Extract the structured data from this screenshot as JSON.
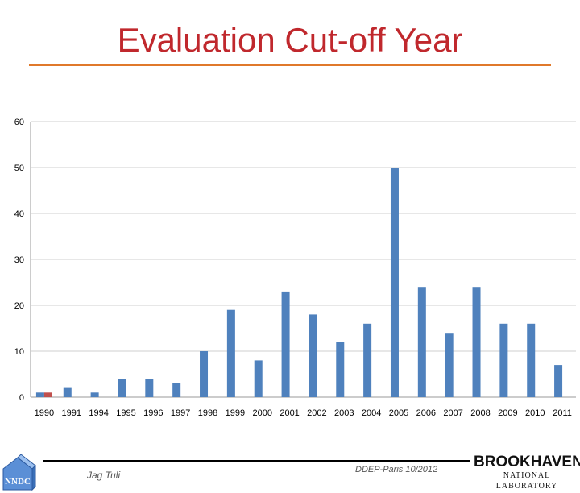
{
  "slide": {
    "title": "Evaluation Cut-off Year",
    "footer_author": "Jag Tuli",
    "footer_event": "DDEP-Paris 10/2012",
    "logo_left_text": "NNDC",
    "logo_right_line1": "BROOKHAVEN",
    "logo_right_line2": "NATIONAL LABORATORY"
  },
  "colors": {
    "title": "#c0282d",
    "bar_blue": "#4f81bd",
    "bar_red": "#c0504d",
    "rule": "#e0792b"
  },
  "chart_data": {
    "type": "bar",
    "categories": [
      "1990",
      "1991",
      "1994",
      "1995",
      "1996",
      "1997",
      "1998",
      "1999",
      "2000",
      "2001",
      "2002",
      "2003",
      "2004",
      "2005",
      "2006",
      "2007",
      "2008",
      "2009",
      "2010",
      "2011"
    ],
    "series": [
      {
        "values": [
          1,
          2,
          1,
          4,
          4,
          3,
          10,
          19,
          8,
          23,
          18,
          12,
          16,
          50,
          24,
          14,
          24,
          16,
          16,
          7
        ]
      },
      {
        "values": [
          1,
          0,
          0,
          0,
          0,
          0,
          0,
          0,
          0,
          0,
          0,
          0,
          0,
          0,
          0,
          0,
          0,
          0,
          0,
          0
        ]
      }
    ],
    "ylim": [
      0,
      60
    ],
    "yticks": [
      0,
      10,
      20,
      30,
      40,
      50,
      60
    ],
    "grid": true,
    "legend": "none"
  }
}
